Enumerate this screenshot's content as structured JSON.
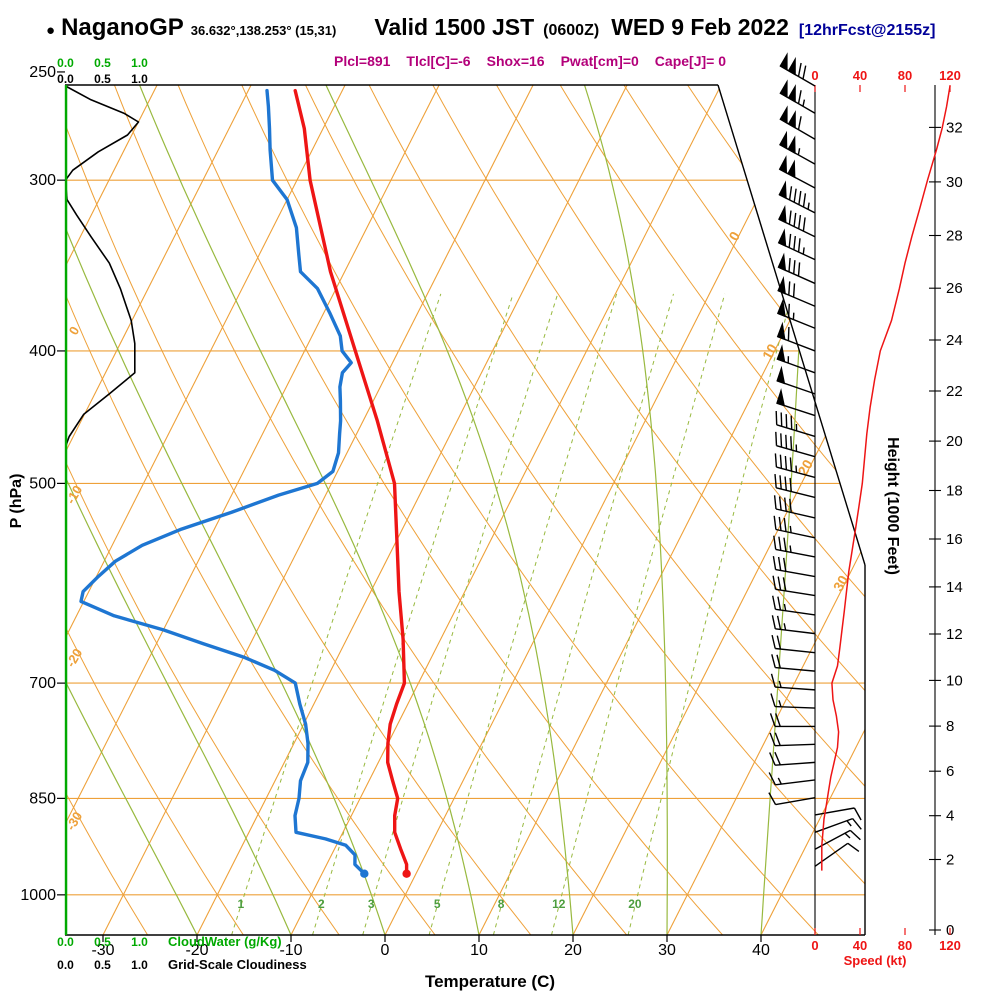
{
  "header": {
    "bullet": "●",
    "station": "NaganoGP",
    "coords": "36.632°,138.253° (15,31)",
    "valid": "Valid 1500 JST",
    "valid_z": "(0600Z)",
    "date": "WED 9 Feb 2022",
    "fcst": "[12hrFcst@2155z]"
  },
  "colors": {
    "grid_orange": "#eea13a",
    "grid_green": "#98b93f",
    "mixing_label_green": "#4d9e3f",
    "cloudwater_green": "#00a900",
    "temperature_red": "#ee1515",
    "dewpoint_blue": "#1e76d2",
    "speed_red": "#ee1515",
    "params_magenta": "#b3007a",
    "forecast_navy": "#000099",
    "black": "#000000"
  },
  "axes": {
    "pressure": {
      "label": "P (hPa)",
      "ticks": [
        250,
        300,
        400,
        500,
        700,
        850,
        1000
      ]
    },
    "temperature": {
      "label": "Temperature (C)",
      "ticks": [
        -30,
        -20,
        -10,
        0,
        10,
        20,
        30,
        40
      ]
    },
    "height": {
      "label": "Height (1000 Feet)",
      "ticks": [
        0,
        2,
        4,
        6,
        8,
        10,
        12,
        14,
        16,
        18,
        20,
        22,
        24,
        26,
        28,
        30,
        32
      ]
    },
    "speed": {
      "label": "Speed (kt)",
      "ticks": [
        0,
        40,
        80,
        120
      ]
    },
    "cloud_scale": [
      "0.0",
      "0.5",
      "1.0"
    ],
    "cloudwater_label": "CloudWater (g/Kg)",
    "cloudiness_label": "Grid-Scale Cloudiness"
  },
  "chart_data": {
    "type": "skew-t-log-p sounding",
    "parameters_display": [
      "Plcl=891",
      "Tlcl[C]=-6",
      "Shox=16",
      "Pwat[cm]=0",
      "Cape[J]= 0"
    ],
    "parameters": {
      "p_lcl_hpa": 891,
      "t_lcl_c": -6,
      "showalter_index": 16,
      "precipitable_water_cm": 0,
      "cape_j": 0
    },
    "isotherm_labels_c": [
      0,
      10,
      20,
      30
    ],
    "dry_adiabat_labels_c": [
      0,
      -10,
      -20,
      -30
    ],
    "mixing_ratio_lines_gkg": [
      1,
      2,
      3,
      5,
      8,
      12,
      20
    ],
    "moist_adiabats_start_c": [
      -20,
      -10,
      0,
      10,
      20,
      30,
      40
    ],
    "temperature_profile_p_c": [
      [
        965,
        -1
      ],
      [
        950,
        -1.5
      ],
      [
        925,
        -3
      ],
      [
        900,
        -4.5
      ],
      [
        875,
        -5.4
      ],
      [
        850,
        -6
      ],
      [
        825,
        -7.5
      ],
      [
        800,
        -9
      ],
      [
        775,
        -10
      ],
      [
        750,
        -10.8
      ],
      [
        725,
        -11.2
      ],
      [
        700,
        -11.5
      ],
      [
        650,
        -14
      ],
      [
        600,
        -17
      ],
      [
        550,
        -20
      ],
      [
        500,
        -23.3
      ],
      [
        450,
        -28.5
      ],
      [
        400,
        -34.6
      ],
      [
        350,
        -41.5
      ],
      [
        300,
        -48.6
      ],
      [
        275,
        -52
      ],
      [
        258,
        -55
      ]
    ],
    "dewpoint_profile_p_c": [
      [
        965,
        -5.5
      ],
      [
        950,
        -7
      ],
      [
        935,
        -7.5
      ],
      [
        920,
        -9
      ],
      [
        910,
        -11.5
      ],
      [
        900,
        -15
      ],
      [
        875,
        -16
      ],
      [
        850,
        -16.5
      ],
      [
        825,
        -17.3
      ],
      [
        800,
        -17.5
      ],
      [
        775,
        -18.5
      ],
      [
        750,
        -19.8
      ],
      [
        725,
        -21.5
      ],
      [
        700,
        -23.1
      ],
      [
        685,
        -26
      ],
      [
        670,
        -30
      ],
      [
        655,
        -35
      ],
      [
        640,
        -40
      ],
      [
        625,
        -46
      ],
      [
        610,
        -50.3
      ],
      [
        600,
        -50.6
      ],
      [
        585,
        -49.8
      ],
      [
        570,
        -48.8
      ],
      [
        555,
        -46.8
      ],
      [
        540,
        -43.5
      ],
      [
        525,
        -39.1
      ],
      [
        510,
        -35
      ],
      [
        500,
        -31.5
      ],
      [
        490,
        -30.5
      ],
      [
        475,
        -30.9
      ],
      [
        460,
        -31.8
      ],
      [
        450,
        -32.4
      ],
      [
        435,
        -33.5
      ],
      [
        425,
        -34.3
      ],
      [
        415,
        -34.8
      ],
      [
        408,
        -34.4
      ],
      [
        400,
        -36
      ],
      [
        390,
        -37
      ],
      [
        375,
        -39.4
      ],
      [
        360,
        -42
      ],
      [
        350,
        -44.7
      ],
      [
        340,
        -45.8
      ],
      [
        325,
        -47.5
      ],
      [
        310,
        -50
      ],
      [
        300,
        -52.6
      ],
      [
        285,
        -54.5
      ],
      [
        275,
        -55.7
      ],
      [
        265,
        -57
      ],
      [
        258,
        -58
      ]
    ],
    "cloudiness_profile_p_frac": [
      [
        256,
        0
      ],
      [
        262,
        0.35
      ],
      [
        268,
        0.8
      ],
      [
        272,
        1
      ],
      [
        278,
        0.85
      ],
      [
        286,
        0.45
      ],
      [
        295,
        0.1
      ],
      [
        300,
        0
      ],
      [
        310,
        0.02
      ],
      [
        318,
        0.15
      ],
      [
        330,
        0.35
      ],
      [
        345,
        0.6
      ],
      [
        360,
        0.75
      ],
      [
        380,
        0.9
      ],
      [
        395,
        0.95
      ],
      [
        415,
        0.95
      ],
      [
        430,
        0.6
      ],
      [
        445,
        0.25
      ],
      [
        462,
        0.05
      ],
      [
        470,
        0
      ],
      [
        1070,
        0
      ]
    ],
    "cloud_water_profile_p_gkg": [
      [
        1070,
        0
      ],
      [
        256,
        0
      ]
    ],
    "wind_profile_p_dir_kt": [
      [
        256,
        300,
        120
      ],
      [
        268,
        300,
        115
      ],
      [
        280,
        300,
        111
      ],
      [
        292,
        299,
        107
      ],
      [
        304,
        298,
        102
      ],
      [
        317,
        297,
        97
      ],
      [
        330,
        296,
        91
      ],
      [
        343,
        295,
        85
      ],
      [
        357,
        294,
        79
      ],
      [
        371,
        293,
        72
      ],
      [
        385,
        292,
        65
      ],
      [
        400,
        291,
        58
      ],
      [
        415,
        290,
        55
      ],
      [
        430,
        289,
        52
      ],
      [
        446,
        288,
        49
      ],
      [
        462,
        287,
        47
      ],
      [
        478,
        286,
        45
      ],
      [
        495,
        285,
        43
      ],
      [
        512,
        284,
        40
      ],
      [
        530,
        283,
        38
      ],
      [
        548,
        282,
        35
      ],
      [
        566,
        281,
        33
      ],
      [
        585,
        280,
        30
      ],
      [
        604,
        279,
        28
      ],
      [
        624,
        278,
        26
      ],
      [
        644,
        277,
        24
      ],
      [
        665,
        276,
        22
      ],
      [
        686,
        275,
        20
      ],
      [
        708,
        274,
        17
      ],
      [
        730,
        272,
        17
      ],
      [
        753,
        270,
        20
      ],
      [
        776,
        268,
        21
      ],
      [
        800,
        266,
        18
      ],
      [
        824,
        263,
        15
      ],
      [
        849,
        260,
        12
      ],
      [
        874,
        80,
        11
      ],
      [
        900,
        70,
        13
      ],
      [
        926,
        62,
        15
      ],
      [
        953,
        55,
        12
      ]
    ],
    "wind_speed_curve_p_kt": [
      [
        256,
        120
      ],
      [
        265,
        117
      ],
      [
        275,
        113
      ],
      [
        285,
        108
      ],
      [
        300,
        100
      ],
      [
        315,
        93
      ],
      [
        330,
        86
      ],
      [
        345,
        80
      ],
      [
        360,
        75
      ],
      [
        380,
        68
      ],
      [
        400,
        58
      ],
      [
        420,
        53
      ],
      [
        440,
        49
      ],
      [
        460,
        46
      ],
      [
        480,
        44
      ],
      [
        500,
        42
      ],
      [
        520,
        39
      ],
      [
        540,
        36
      ],
      [
        560,
        33
      ],
      [
        580,
        30
      ],
      [
        600,
        28
      ],
      [
        620,
        26
      ],
      [
        640,
        24
      ],
      [
        660,
        22
      ],
      [
        680,
        20
      ],
      [
        700,
        15
      ],
      [
        720,
        16
      ],
      [
        740,
        19
      ],
      [
        760,
        21
      ],
      [
        780,
        20
      ],
      [
        800,
        17
      ],
      [
        820,
        14
      ],
      [
        840,
        12
      ],
      [
        860,
        10
      ],
      [
        880,
        8
      ],
      [
        900,
        7
      ],
      [
        920,
        6
      ],
      [
        940,
        6
      ],
      [
        960,
        6
      ]
    ]
  }
}
